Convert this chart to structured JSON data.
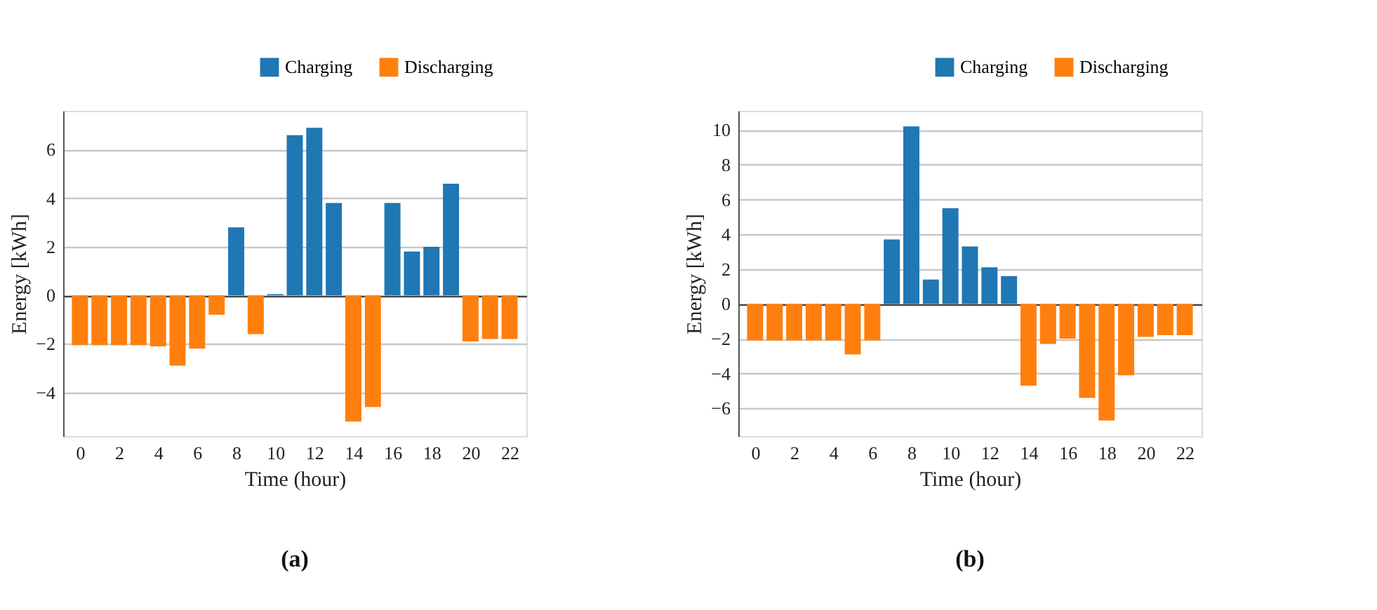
{
  "chart_data": [
    {
      "type": "bar",
      "xlabel": "Time (hour)",
      "ylabel": "Energy [kWh]",
      "legend": "top right",
      "grid": "y",
      "annotations": [
        "(a)"
      ],
      "x": [
        0,
        1,
        2,
        3,
        4,
        5,
        6,
        7,
        8,
        9,
        10,
        11,
        12,
        13,
        14,
        15,
        16,
        17,
        18,
        19,
        20,
        21,
        22
      ],
      "xlim": [
        -0.5,
        22.5
      ],
      "xticks": [
        0,
        2,
        4,
        6,
        8,
        10,
        12,
        14,
        16,
        18,
        20,
        22
      ],
      "ylim": [
        -5.8,
        7.6
      ],
      "yticks": [
        {
          "value": -4,
          "label": "−4"
        },
        {
          "value": -2,
          "label": "−2"
        },
        0,
        2,
        4,
        6
      ],
      "series": [
        {
          "name": "Charging",
          "color": "#1f77b4",
          "values": [
            null,
            null,
            null,
            null,
            null,
            null,
            null,
            null,
            2.8,
            null,
            0.05,
            6.6,
            6.9,
            3.8,
            null,
            null,
            3.8,
            1.8,
            2.0,
            4.6,
            null,
            null,
            null
          ]
        },
        {
          "name": "Discharging",
          "color": "#ff7f0e",
          "values": [
            -2.05,
            -2.05,
            -2.05,
            -2.05,
            -2.1,
            -2.9,
            -2.2,
            -0.8,
            null,
            -1.6,
            null,
            null,
            null,
            null,
            -5.2,
            -4.6,
            null,
            null,
            null,
            null,
            -1.9,
            -1.8,
            -1.8
          ]
        }
      ]
    },
    {
      "type": "bar",
      "xlabel": "Time (hour)",
      "ylabel": "Energy [kWh]",
      "legend": "top right",
      "grid": "y",
      "annotations": [
        "(b)"
      ],
      "x": [
        0,
        1,
        2,
        3,
        4,
        5,
        6,
        7,
        8,
        9,
        10,
        11,
        12,
        13,
        14,
        15,
        16,
        17,
        18,
        19,
        20,
        21,
        22
      ],
      "xlim": [
        -0.5,
        22.5
      ],
      "xticks": [
        0,
        2,
        4,
        6,
        8,
        10,
        12,
        14,
        16,
        18,
        20,
        22
      ],
      "ylim": [
        -7.6,
        11.1
      ],
      "yticks": [
        {
          "value": -6,
          "label": "−6"
        },
        {
          "value": -4,
          "label": "−4"
        },
        {
          "value": -2,
          "label": "−2"
        },
        0,
        2,
        4,
        6,
        8,
        10
      ],
      "series": [
        {
          "name": "Charging",
          "color": "#1f77b4",
          "values": [
            null,
            null,
            null,
            null,
            null,
            null,
            null,
            3.7,
            10.2,
            1.4,
            5.5,
            3.3,
            2.1,
            1.6,
            null,
            null,
            null,
            null,
            null,
            null,
            null,
            null,
            null
          ]
        },
        {
          "name": "Discharging",
          "color": "#ff7f0e",
          "values": [
            -2.1,
            -2.1,
            -2.1,
            -2.1,
            -2.1,
            -2.9,
            -2.1,
            null,
            null,
            null,
            null,
            null,
            null,
            null,
            -4.7,
            -2.3,
            -2.0,
            -5.4,
            -6.7,
            -4.1,
            -1.9,
            -1.8,
            -1.8
          ]
        }
      ]
    }
  ]
}
